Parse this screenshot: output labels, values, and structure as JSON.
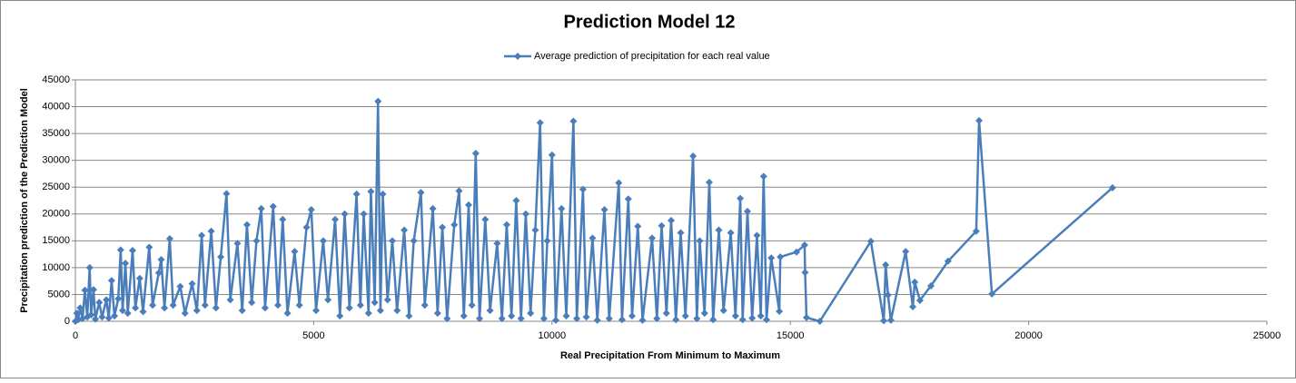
{
  "chart_data": {
    "type": "scatter_line",
    "title": "Prediction Model 12",
    "x_label": "Real Precipitation From Minimum to Maximum",
    "y_label": "Precipitation prediction of the Prediction Model",
    "xlim": [
      0,
      25000
    ],
    "xticks": [
      0,
      5000,
      10000,
      15000,
      20000,
      25000
    ],
    "ylim": [
      0,
      45000
    ],
    "yticks": [
      0,
      5000,
      10000,
      15000,
      20000,
      25000,
      30000,
      35000,
      40000,
      45000
    ],
    "grid": true,
    "legend": "top",
    "x": [
      0,
      30,
      60,
      100,
      150,
      200,
      250,
      300,
      330,
      380,
      420,
      500,
      560,
      650,
      700,
      760,
      820,
      900,
      950,
      990,
      1050,
      1100,
      1200,
      1260,
      1350,
      1420,
      1550,
      1620,
      1750,
      1800,
      1870,
      1980,
      2050,
      2200,
      2300,
      2450,
      2550,
      2650,
      2720,
      2850,
      2950,
      3050,
      3170,
      3250,
      3400,
      3500,
      3600,
      3700,
      3800,
      3900,
      3980,
      4150,
      4250,
      4350,
      4450,
      4600,
      4700,
      4850,
      4950,
      5050,
      5200,
      5300,
      5450,
      5550,
      5650,
      5750,
      5900,
      5980,
      6050,
      6150,
      6200,
      6280,
      6350,
      6400,
      6450,
      6550,
      6650,
      6750,
      6900,
      7000,
      7100,
      7250,
      7330,
      7500,
      7600,
      7700,
      7800,
      7950,
      8050,
      8150,
      8250,
      8320,
      8400,
      8480,
      8600,
      8700,
      8850,
      8950,
      9050,
      9150,
      9250,
      9350,
      9450,
      9550,
      9650,
      9750,
      9830,
      9900,
      10000,
      10080,
      10200,
      10300,
      10450,
      10520,
      10650,
      10720,
      10850,
      10950,
      11100,
      11200,
      11400,
      11470,
      11600,
      11680,
      11800,
      11900,
      12100,
      12200,
      12300,
      12400,
      12500,
      12600,
      12700,
      12800,
      12960,
      13040,
      13100,
      13200,
      13300,
      13380,
      13500,
      13600,
      13750,
      13850,
      13950,
      14000,
      14100,
      14200,
      14300,
      14380,
      14440,
      14500,
      14600,
      14770,
      14790,
      15130,
      15300,
      15310,
      15340,
      15620,
      16690,
      16960,
      17000,
      17050,
      17110,
      17420,
      17570,
      17610,
      17720,
      17950,
      18310,
      18900,
      18960,
      19230,
      21760
    ],
    "series": [
      {
        "name": "Average prediction of precipitation for each real value",
        "color": "#4a7ebb",
        "values": [
          0,
          1500,
          300,
          2500,
          500,
          5800,
          800,
          10000,
          1200,
          5900,
          400,
          3500,
          800,
          4000,
          600,
          7600,
          1000,
          4200,
          13300,
          2000,
          10800,
          1500,
          13200,
          2500,
          8000,
          1800,
          13800,
          3000,
          9000,
          11500,
          2500,
          15400,
          3000,
          6500,
          1500,
          7000,
          2000,
          16000,
          3000,
          16800,
          2500,
          12000,
          23800,
          4000,
          14500,
          2000,
          18000,
          3500,
          15000,
          21000,
          2500,
          21400,
          3000,
          19000,
          1500,
          13000,
          3000,
          17500,
          20800,
          2000,
          15000,
          4000,
          19000,
          1000,
          20000,
          2500,
          23700,
          3000,
          20000,
          1500,
          24200,
          3500,
          41000,
          2000,
          23700,
          4000,
          15000,
          2000,
          17000,
          1000,
          15000,
          24000,
          3000,
          21000,
          1500,
          17500,
          500,
          18000,
          24300,
          1000,
          21700,
          3000,
          31300,
          500,
          19000,
          2000,
          14500,
          500,
          18000,
          1000,
          22500,
          500,
          20000,
          1500,
          17000,
          37000,
          500,
          15000,
          31000,
          200,
          21000,
          1000,
          37300,
          500,
          24600,
          800,
          15500,
          200,
          20800,
          500,
          25800,
          300,
          22800,
          1000,
          17700,
          200,
          15500,
          500,
          17800,
          1500,
          18800,
          300,
          16500,
          1000,
          30800,
          500,
          15000,
          1500,
          25900,
          300,
          17000,
          2000,
          16500,
          1000,
          22900,
          300,
          20500,
          600,
          16000,
          1000,
          27000,
          300,
          11800,
          1860,
          12000,
          12900,
          14200,
          9100,
          700,
          0,
          14900,
          100,
          10500,
          4900,
          200,
          13000,
          2700,
          7300,
          3900,
          6600,
          11200,
          16800,
          37400,
          5100,
          24900
        ]
      }
    ]
  }
}
